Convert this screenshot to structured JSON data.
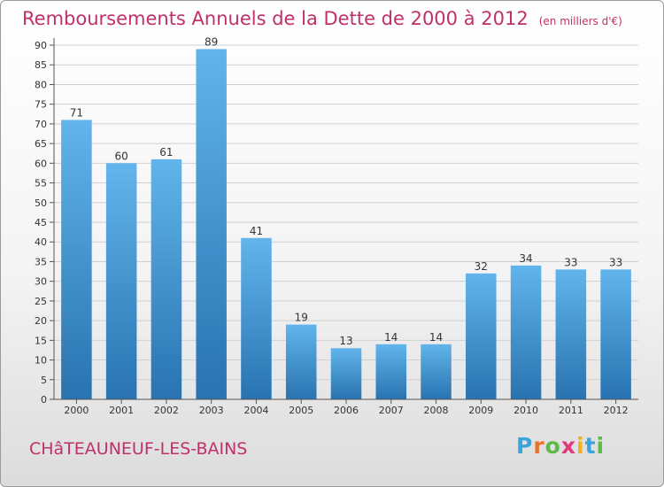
{
  "title": "Remboursements Annuels de la Dette de 2000 à 2012",
  "subtitle": "(en milliers d'€)",
  "city": "CHâTEAUNEUF-LES-BAINS",
  "logo": {
    "letters": [
      "P",
      "r",
      "o",
      "x",
      "i",
      "t",
      "i"
    ],
    "colors": [
      "#3aa5dc",
      "#e8742c",
      "#5dbb46",
      "#e03a7a",
      "#f0b020",
      "#3aa5dc",
      "#5dbb46"
    ]
  },
  "colors": {
    "title": "#c0306a",
    "bar_top": "#62b4ec",
    "bar_bottom": "#2873b0",
    "grid": "#d0d0d0",
    "axis": "#555555"
  },
  "chart_data": {
    "type": "bar",
    "categories": [
      "2000",
      "2001",
      "2002",
      "2003",
      "2004",
      "2005",
      "2006",
      "2007",
      "2008",
      "2009",
      "2010",
      "2011",
      "2012"
    ],
    "values": [
      71,
      60,
      61,
      89,
      41,
      19,
      13,
      14,
      14,
      32,
      34,
      33,
      33
    ],
    "yticks": [
      0,
      5,
      10,
      15,
      20,
      25,
      30,
      35,
      40,
      45,
      50,
      55,
      60,
      65,
      70,
      75,
      80,
      85,
      90
    ],
    "ylim": [
      0,
      90
    ],
    "grid": true,
    "data_labels": true
  }
}
